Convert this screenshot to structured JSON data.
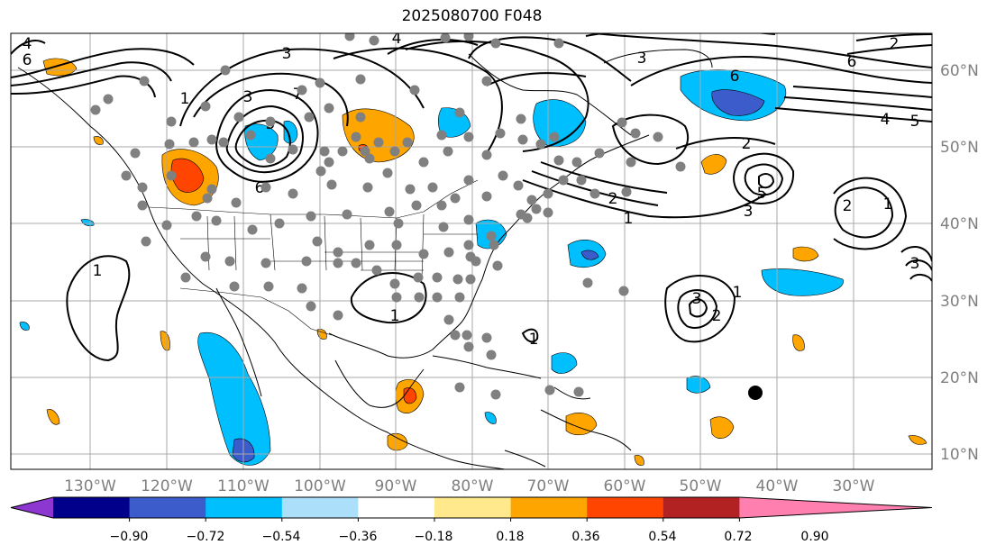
{
  "title": "2025080700 F048",
  "map": {
    "lon_labels": [
      "130°W",
      "120°W",
      "110°W",
      "100°W",
      "90°W",
      "80°W",
      "70°W",
      "60°W",
      "50°W",
      "40°W",
      "30°W"
    ],
    "lat_labels": [
      "60°N",
      "50°N",
      "40°N",
      "30°N",
      "20°N",
      "10°N"
    ],
    "contour_labels": [
      "4",
      "6",
      "1",
      "3",
      "7",
      "5",
      "6",
      "4",
      "6",
      "2",
      "1",
      "3",
      "2",
      "5",
      "3",
      "3",
      "1",
      "3",
      "2",
      "1",
      "1",
      "5",
      "4",
      "6",
      "2",
      "1",
      "3",
      "2",
      "1"
    ],
    "label_color": "#7f7f7f",
    "station_color": "#808080",
    "marker_color": "#000000"
  },
  "colorbar": {
    "colors": [
      "#8e36d0",
      "#00008b",
      "#3c5ccc",
      "#00bfff",
      "#acdffa",
      "#ffffff",
      "#ffe98c",
      "#ffa500",
      "#ff4500",
      "#b22222",
      "#ff7fae"
    ],
    "tick_labels": [
      "−0.90",
      "−0.72",
      "−0.54",
      "−0.36",
      "−0.18",
      "0.18",
      "0.36",
      "0.54",
      "0.72",
      "0.90"
    ],
    "levels": [
      -0.9,
      -0.72,
      -0.54,
      -0.36,
      -0.18,
      0.18,
      0.36,
      0.54,
      0.72,
      0.9
    ]
  }
}
